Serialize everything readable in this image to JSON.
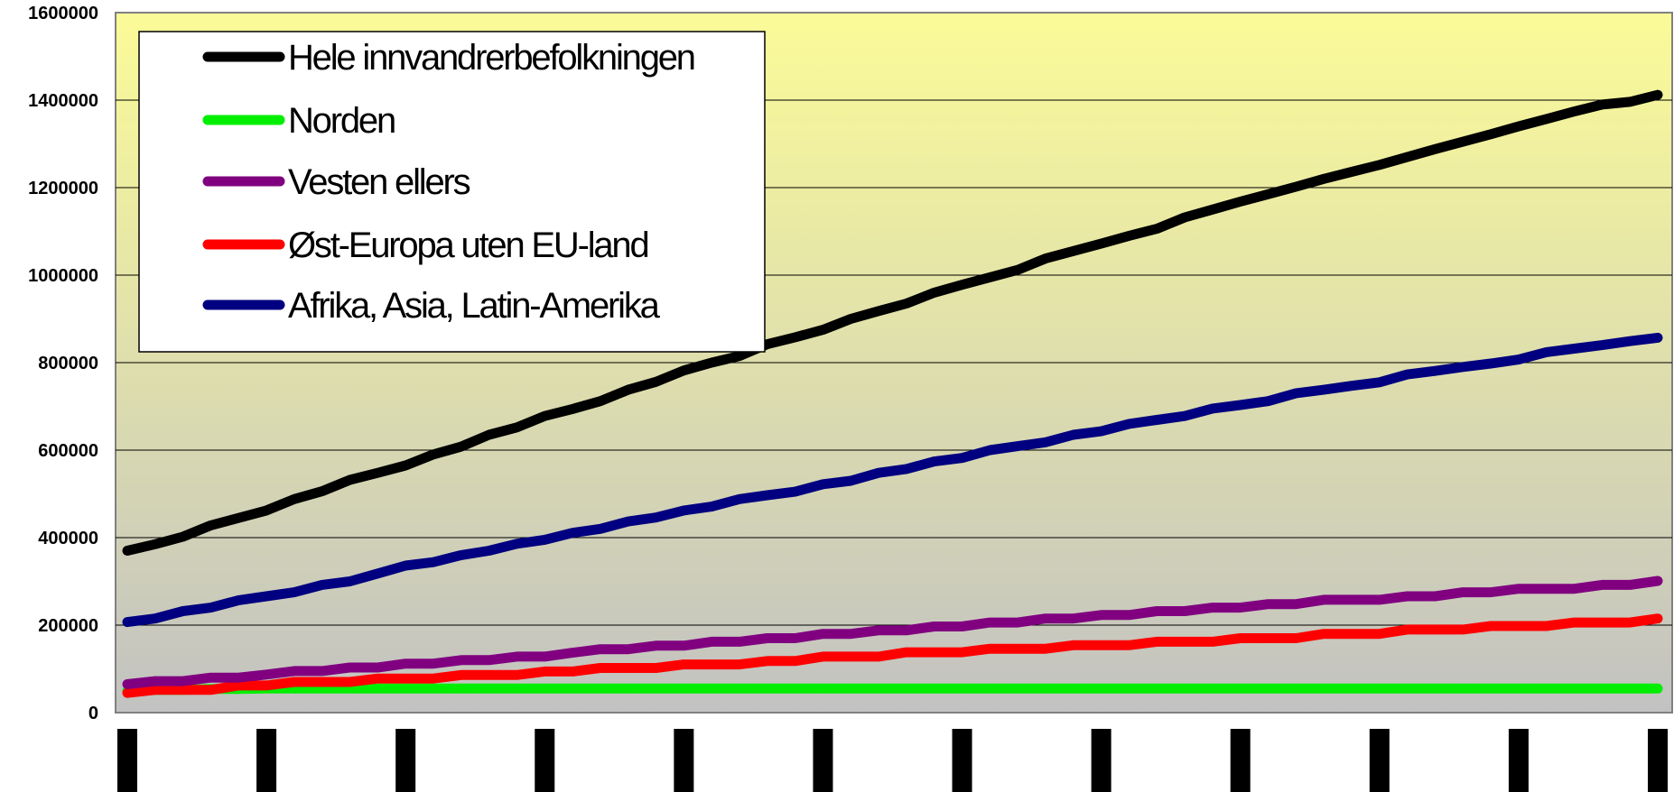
{
  "chart_data": {
    "type": "line",
    "title": "",
    "xlabel": "",
    "ylabel": "",
    "ylim": [
      0,
      1600000
    ],
    "yticks": [
      0,
      200000,
      400000,
      600000,
      800000,
      1000000,
      1200000,
      1400000,
      1600000
    ],
    "ytick_labels": [
      "0",
      "200000",
      "400000",
      "600000",
      "800000",
      "1000000",
      "1200000",
      "1400000",
      "1600000"
    ],
    "x_tick_count": 12,
    "x_tick_labels_visible": false,
    "grid": true,
    "legend_position": "top-left",
    "plot_background": {
      "gradient_top": "#fbfb98",
      "gradient_bottom": "#c2c2c2"
    },
    "series": [
      {
        "name": "Hele innvandrerbefolkningen",
        "color": "#000000",
        "values": [
          370000,
          385000,
          402000,
          428000,
          445000,
          462000,
          488000,
          506000,
          532000,
          548000,
          565000,
          590000,
          608000,
          635000,
          652000,
          678000,
          694000,
          712000,
          738000,
          756000,
          782000,
          800000,
          815000,
          842000,
          858000,
          875000,
          900000,
          918000,
          935000,
          960000,
          978000,
          995000,
          1012000,
          1038000,
          1055000,
          1072000,
          1090000,
          1106000,
          1132000,
          1150000,
          1168000,
          1185000,
          1202000,
          1220000,
          1236000,
          1252000,
          1270000,
          1288000,
          1305000,
          1322000,
          1340000,
          1357000,
          1374000,
          1390000,
          1396000,
          1412000
        ]
      },
      {
        "name": "Norden",
        "color": "#00ee00",
        "values": [
          50000,
          52000,
          52000,
          54000,
          54000,
          55000,
          55000,
          55000,
          55000,
          55000,
          55000,
          55000,
          55000,
          55000,
          55000,
          55000,
          55000,
          55000,
          55000,
          55000,
          55000,
          55000,
          55000,
          55000,
          55000,
          55000,
          55000,
          55000,
          55000,
          55000,
          55000,
          55000,
          55000,
          55000,
          55000,
          55000,
          55000,
          55000,
          55000,
          55000,
          55000,
          55000,
          55000,
          55000,
          55000,
          55000,
          55000,
          55000,
          55000,
          55000,
          55000,
          55000,
          55000,
          55000,
          55000,
          55000
        ]
      },
      {
        "name": "Vesten ellers",
        "color": "#800080",
        "values": [
          65000,
          72000,
          72000,
          80000,
          80000,
          87000,
          95000,
          95000,
          103000,
          103000,
          112000,
          112000,
          120000,
          120000,
          128000,
          128000,
          137000,
          145000,
          145000,
          153000,
          153000,
          162000,
          162000,
          170000,
          170000,
          180000,
          180000,
          188000,
          188000,
          197000,
          197000,
          206000,
          206000,
          215000,
          215000,
          223000,
          223000,
          232000,
          232000,
          240000,
          240000,
          248000,
          248000,
          258000,
          258000,
          258000,
          266000,
          266000,
          275000,
          275000,
          283000,
          283000,
          283000,
          292000,
          292000,
          301000
        ]
      },
      {
        "name": "Øst-Europa uten EU-land",
        "color": "#ff0000",
        "values": [
          45000,
          52000,
          52000,
          52000,
          62000,
          62000,
          70000,
          70000,
          70000,
          78000,
          78000,
          78000,
          86000,
          86000,
          86000,
          94000,
          94000,
          102000,
          102000,
          102000,
          110000,
          110000,
          110000,
          118000,
          118000,
          128000,
          128000,
          128000,
          138000,
          138000,
          138000,
          146000,
          146000,
          146000,
          154000,
          154000,
          154000,
          162000,
          162000,
          162000,
          170000,
          170000,
          170000,
          180000,
          180000,
          180000,
          190000,
          190000,
          190000,
          198000,
          198000,
          198000,
          206000,
          206000,
          206000,
          215000
        ]
      },
      {
        "name": "Afrika, Asia, Latin-Amerika",
        "color": "#000080",
        "values": [
          207000,
          215000,
          232000,
          240000,
          257000,
          266000,
          275000,
          292000,
          300000,
          318000,
          336000,
          344000,
          360000,
          370000,
          386000,
          395000,
          411000,
          420000,
          437000,
          446000,
          462000,
          471000,
          488000,
          497000,
          505000,
          522000,
          530000,
          548000,
          557000,
          574000,
          582000,
          600000,
          609000,
          618000,
          635000,
          643000,
          660000,
          669000,
          678000,
          695000,
          703000,
          712000,
          730000,
          738000,
          747000,
          755000,
          773000,
          781000,
          790000,
          798000,
          807000,
          824000,
          832000,
          840000,
          849000,
          857000
        ]
      }
    ]
  }
}
